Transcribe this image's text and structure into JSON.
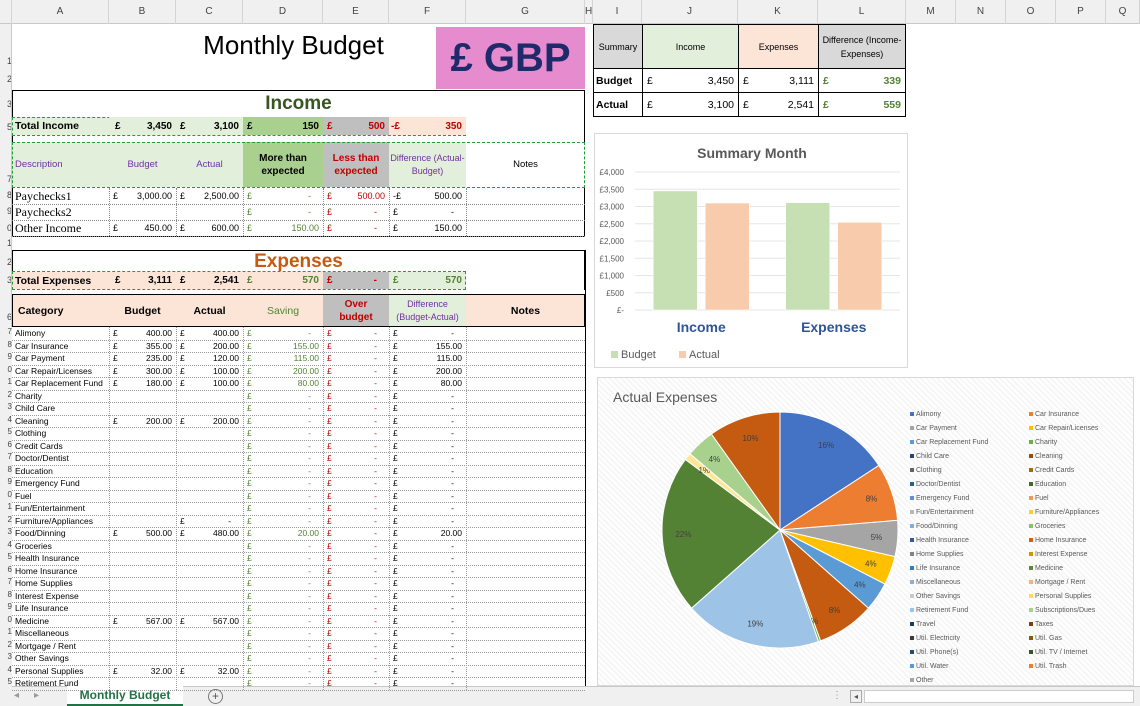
{
  "columns": [
    "A",
    "B",
    "C",
    "D",
    "E",
    "F",
    "G",
    "H",
    "I",
    "J",
    "K",
    "L",
    "M",
    "N",
    "O",
    "P",
    "Q"
  ],
  "rows": [
    "1",
    "2",
    "3",
    "5",
    "7",
    "8",
    "9",
    "0",
    "1",
    "2",
    "3",
    "6",
    "7",
    "8",
    "9",
    "20",
    "21",
    "22",
    "23",
    "24",
    "25",
    "26",
    "27",
    "28",
    "29",
    "30",
    "31",
    "32",
    "33",
    "34",
    "35",
    "36",
    "37",
    "38",
    "39",
    "40",
    "41",
    "42",
    "43",
    "44",
    "45"
  ],
  "title": "Monthly Budget",
  "currency_badge": "£  GBP",
  "income": {
    "heading": "Income",
    "total_label": "Total Income",
    "total_budget_sym": "£",
    "total_budget": "3,450",
    "total_actual_sym": "£",
    "total_actual": "3,100",
    "total_more_sym": "£",
    "total_more": "150",
    "total_less_sym": "£",
    "total_less": "500",
    "total_diff_sym": "-£",
    "total_diff": "350",
    "headers": {
      "description": "Description",
      "budget": "Budget",
      "actual": "Actual",
      "more": "More than expected",
      "less": "Less than expected",
      "difference": "Difference (Actual-Budget)",
      "notes": "Notes"
    },
    "rows": [
      {
        "desc": "Paychecks1",
        "b_sym": "£",
        "budget": "3,000.00",
        "a_sym": "£",
        "actual": "2,500.00",
        "m_sym": "£",
        "more": "-",
        "l_sym": "£",
        "less": "500.00",
        "d_sym": "-£",
        "diff": "500.00"
      },
      {
        "desc": "Paychecks2",
        "b_sym": "",
        "budget": "",
        "a_sym": "",
        "actual": "",
        "m_sym": "£",
        "more": "-",
        "l_sym": "£",
        "less": "-",
        "d_sym": "£",
        "diff": "-"
      },
      {
        "desc": "Other Income",
        "b_sym": "£",
        "budget": "450.00",
        "a_sym": "£",
        "actual": "600.00",
        "m_sym": "£",
        "more": "150.00",
        "l_sym": "£",
        "less": "-",
        "d_sym": "£",
        "diff": "150.00"
      }
    ]
  },
  "expenses": {
    "heading": "Expenses",
    "total_label": "Total Expenses",
    "total_budget_sym": "£",
    "total_budget": "3,111",
    "total_actual_sym": "£",
    "total_actual": "2,541",
    "total_saving_sym": "£",
    "total_saving": "570",
    "total_over_sym": "£",
    "total_over": "-",
    "total_diff_sym": "£",
    "total_diff": "570",
    "headers": {
      "category": "Category",
      "budget": "Budget",
      "actual": "Actual",
      "saving": "Saving",
      "over": "Over budget",
      "difference": "Difference (Budget-Actual)",
      "notes": "Notes"
    },
    "rows": [
      {
        "cat": "Alimony",
        "b_sym": "£",
        "budget": "400.00",
        "a_sym": "£",
        "actual": "400.00",
        "s_sym": "£",
        "saving": "-",
        "o_sym": "£",
        "over": "-",
        "d_sym": "£",
        "diff": "-"
      },
      {
        "cat": "Car Insurance",
        "b_sym": "£",
        "budget": "355.00",
        "a_sym": "£",
        "actual": "200.00",
        "s_sym": "£",
        "saving": "155.00",
        "o_sym": "£",
        "over": "-",
        "d_sym": "£",
        "diff": "155.00"
      },
      {
        "cat": "Car Payment",
        "b_sym": "£",
        "budget": "235.00",
        "a_sym": "£",
        "actual": "120.00",
        "s_sym": "£",
        "saving": "115.00",
        "o_sym": "£",
        "over": "-",
        "d_sym": "£",
        "diff": "115.00"
      },
      {
        "cat": "Car Repair/Licenses",
        "b_sym": "£",
        "budget": "300.00",
        "a_sym": "£",
        "actual": "100.00",
        "s_sym": "£",
        "saving": "200.00",
        "o_sym": "£",
        "over": "-",
        "d_sym": "£",
        "diff": "200.00"
      },
      {
        "cat": "Car Replacement Fund",
        "b_sym": "£",
        "budget": "180.00",
        "a_sym": "£",
        "actual": "100.00",
        "s_sym": "£",
        "saving": "80.00",
        "o_sym": "£",
        "over": "-",
        "d_sym": "£",
        "diff": "80.00"
      },
      {
        "cat": "Charity",
        "b_sym": "",
        "budget": "",
        "a_sym": "",
        "actual": "",
        "s_sym": "£",
        "saving": "-",
        "o_sym": "£",
        "over": "-",
        "d_sym": "£",
        "diff": "-"
      },
      {
        "cat": "Child Care",
        "b_sym": "",
        "budget": "",
        "a_sym": "",
        "actual": "",
        "s_sym": "£",
        "saving": "-",
        "o_sym": "£",
        "over": "-",
        "d_sym": "£",
        "diff": "-"
      },
      {
        "cat": "Cleaning",
        "b_sym": "£",
        "budget": "200.00",
        "a_sym": "£",
        "actual": "200.00",
        "s_sym": "£",
        "saving": "-",
        "o_sym": "£",
        "over": "-",
        "d_sym": "£",
        "diff": "-"
      },
      {
        "cat": "Clothing",
        "b_sym": "",
        "budget": "",
        "a_sym": "",
        "actual": "",
        "s_sym": "£",
        "saving": "-",
        "o_sym": "£",
        "over": "-",
        "d_sym": "£",
        "diff": "-"
      },
      {
        "cat": "Credit Cards",
        "b_sym": "",
        "budget": "",
        "a_sym": "",
        "actual": "",
        "s_sym": "£",
        "saving": "-",
        "o_sym": "£",
        "over": "-",
        "d_sym": "£",
        "diff": "-"
      },
      {
        "cat": "Doctor/Dentist",
        "b_sym": "",
        "budget": "",
        "a_sym": "",
        "actual": "",
        "s_sym": "£",
        "saving": "-",
        "o_sym": "£",
        "over": "-",
        "d_sym": "£",
        "diff": "-"
      },
      {
        "cat": "Education",
        "b_sym": "",
        "budget": "",
        "a_sym": "",
        "actual": "",
        "s_sym": "£",
        "saving": "-",
        "o_sym": "£",
        "over": "-",
        "d_sym": "£",
        "diff": "-"
      },
      {
        "cat": "Emergency Fund",
        "b_sym": "",
        "budget": "",
        "a_sym": "",
        "actual": "",
        "s_sym": "£",
        "saving": "-",
        "o_sym": "£",
        "over": "-",
        "d_sym": "£",
        "diff": "-"
      },
      {
        "cat": "Fuel",
        "b_sym": "",
        "budget": "",
        "a_sym": "",
        "actual": "",
        "s_sym": "£",
        "saving": "-",
        "o_sym": "£",
        "over": "-",
        "d_sym": "£",
        "diff": "-"
      },
      {
        "cat": "Fun/Entertainment",
        "b_sym": "",
        "budget": "",
        "a_sym": "",
        "actual": "",
        "s_sym": "£",
        "saving": "-",
        "o_sym": "£",
        "over": "-",
        "d_sym": "£",
        "diff": "-"
      },
      {
        "cat": "Furniture/Appliances",
        "b_sym": "",
        "budget": "",
        "a_sym": "£",
        "actual": "-",
        "s_sym": "£",
        "saving": "-",
        "o_sym": "£",
        "over": "-",
        "d_sym": "£",
        "diff": "-"
      },
      {
        "cat": "Food/Dinning",
        "b_sym": "£",
        "budget": "500.00",
        "a_sym": "£",
        "actual": "480.00",
        "s_sym": "£",
        "saving": "20.00",
        "o_sym": "£",
        "over": "-",
        "d_sym": "£",
        "diff": "20.00"
      },
      {
        "cat": "Groceries",
        "b_sym": "",
        "budget": "",
        "a_sym": "",
        "actual": "",
        "s_sym": "£",
        "saving": "-",
        "o_sym": "£",
        "over": "-",
        "d_sym": "£",
        "diff": "-"
      },
      {
        "cat": "Health Insurance",
        "b_sym": "",
        "budget": "",
        "a_sym": "",
        "actual": "",
        "s_sym": "£",
        "saving": "-",
        "o_sym": "£",
        "over": "-",
        "d_sym": "£",
        "diff": "-"
      },
      {
        "cat": "Home Insurance",
        "b_sym": "",
        "budget": "",
        "a_sym": "",
        "actual": "",
        "s_sym": "£",
        "saving": "-",
        "o_sym": "£",
        "over": "-",
        "d_sym": "£",
        "diff": "-"
      },
      {
        "cat": "Home Supplies",
        "b_sym": "",
        "budget": "",
        "a_sym": "",
        "actual": "",
        "s_sym": "£",
        "saving": "-",
        "o_sym": "£",
        "over": "-",
        "d_sym": "£",
        "diff": "-"
      },
      {
        "cat": "Interest Expense",
        "b_sym": "",
        "budget": "",
        "a_sym": "",
        "actual": "",
        "s_sym": "£",
        "saving": "-",
        "o_sym": "£",
        "over": "-",
        "d_sym": "£",
        "diff": "-"
      },
      {
        "cat": "Life Insurance",
        "b_sym": "",
        "budget": "",
        "a_sym": "",
        "actual": "",
        "s_sym": "£",
        "saving": "-",
        "o_sym": "£",
        "over": "-",
        "d_sym": "£",
        "diff": "-"
      },
      {
        "cat": "Medicine",
        "b_sym": "£",
        "budget": "567.00",
        "a_sym": "£",
        "actual": "567.00",
        "s_sym": "£",
        "saving": "-",
        "o_sym": "£",
        "over": "-",
        "d_sym": "£",
        "diff": "-"
      },
      {
        "cat": "Miscellaneous",
        "b_sym": "",
        "budget": "",
        "a_sym": "",
        "actual": "",
        "s_sym": "£",
        "saving": "-",
        "o_sym": "£",
        "over": "-",
        "d_sym": "£",
        "diff": "-"
      },
      {
        "cat": "Mortgage / Rent",
        "b_sym": "",
        "budget": "",
        "a_sym": "",
        "actual": "",
        "s_sym": "£",
        "saving": "-",
        "o_sym": "£",
        "over": "-",
        "d_sym": "£",
        "diff": "-"
      },
      {
        "cat": "Other Savings",
        "b_sym": "",
        "budget": "",
        "a_sym": "",
        "actual": "",
        "s_sym": "£",
        "saving": "-",
        "o_sym": "£",
        "over": "-",
        "d_sym": "£",
        "diff": "-"
      },
      {
        "cat": "Personal Supplies",
        "b_sym": "£",
        "budget": "32.00",
        "a_sym": "£",
        "actual": "32.00",
        "s_sym": "£",
        "saving": "-",
        "o_sym": "£",
        "over": "-",
        "d_sym": "£",
        "diff": "-"
      },
      {
        "cat": "Retirement Fund",
        "b_sym": "",
        "budget": "",
        "a_sym": "",
        "actual": "",
        "s_sym": "£",
        "saving": "-",
        "o_sym": "£",
        "over": "-",
        "d_sym": "£",
        "diff": "-"
      }
    ]
  },
  "summary": {
    "headers": {
      "summary": "Summary",
      "income": "Income",
      "expenses": "Expenses",
      "difference": "Difference (Income-Expenses)"
    },
    "rows": [
      {
        "label": "Budget",
        "i_sym": "£",
        "income": "3,450",
        "e_sym": "£",
        "expenses": "3,111",
        "d_sym": "£",
        "diff": "339"
      },
      {
        "label": "Actual",
        "i_sym": "£",
        "income": "3,100",
        "e_sym": "£",
        "expenses": "2,541",
        "d_sym": "£",
        "diff": "559"
      }
    ]
  },
  "chart_data": [
    {
      "type": "bar",
      "title": "Summary Month",
      "categories": [
        "Income",
        "Expenses"
      ],
      "series": [
        {
          "name": "Budget",
          "values": [
            3450,
            3111
          ],
          "color": "#c6e0b4"
        },
        {
          "name": "Actual",
          "values": [
            3100,
            2541
          ],
          "color": "#f8cbad"
        }
      ],
      "ylim": [
        0,
        4000
      ],
      "yticks": [
        "£4,000",
        "£3,500",
        "£3,000",
        "£2,500",
        "£2,000",
        "£1,500",
        "£1,000",
        "£500",
        "£-"
      ],
      "legend": "bottom-left",
      "grid": true
    },
    {
      "type": "pie",
      "title": "Actual Expenses",
      "slices": [
        {
          "name": "Alimony",
          "value": 16,
          "label": "16%",
          "color": "#4472c4"
        },
        {
          "name": "Car Insurance",
          "value": 8,
          "label": "8%",
          "color": "#ed7d31"
        },
        {
          "name": "Car Payment",
          "value": 5,
          "label": "5%",
          "color": "#a5a5a5"
        },
        {
          "name": "Car Repair/Licenses",
          "value": 4,
          "label": "4%",
          "color": "#ffc000"
        },
        {
          "name": "Car Replacement Fund",
          "value": 4,
          "label": "4%",
          "color": "#5b9bd5"
        },
        {
          "name": "Cleaning",
          "value": 8,
          "label": "8%",
          "color": "#c55a11"
        },
        {
          "name": "Furniture/Appliances",
          "value": 0,
          "label": "0%",
          "color": "#70ad47"
        },
        {
          "name": "Food/Dinning",
          "value": 19,
          "label": "19%",
          "color": "#9dc3e6"
        },
        {
          "name": "Medicine",
          "value": 22,
          "label": "22%",
          "color": "#548235"
        },
        {
          "name": "Personal Supplies",
          "value": 1,
          "label": "1%",
          "color": "#ffe699"
        },
        {
          "name": "Other",
          "value": 4,
          "label": "4%",
          "color": "#a9d18e"
        },
        {
          "name": "Retirement Fund",
          "value": 10,
          "label": "10%",
          "color": "#c55a11"
        }
      ],
      "legend": [
        [
          "Alimony",
          "#4472c4"
        ],
        [
          "Car Insurance",
          "#ed7d31"
        ],
        [
          "Car Payment",
          "#a5a5a5"
        ],
        [
          "Car Repair/Licenses",
          "#ffc000"
        ],
        [
          "Car Replacement Fund",
          "#5b9bd5"
        ],
        [
          "Charity",
          "#70ad47"
        ],
        [
          "Child Care",
          "#264478"
        ],
        [
          "Cleaning",
          "#9e480e"
        ],
        [
          "Clothing",
          "#636363"
        ],
        [
          "Credit Cards",
          "#997300"
        ],
        [
          "Doctor/Dentist",
          "#255e91"
        ],
        [
          "Education",
          "#43682b"
        ],
        [
          "Emergency Fund",
          "#698ed0"
        ],
        [
          "Fuel",
          "#f1975a"
        ],
        [
          "Fun/Entertainment",
          "#b7b7b7"
        ],
        [
          "Furniture/Appliances",
          "#ffcd33"
        ],
        [
          "Food/Dinning",
          "#7cafdd"
        ],
        [
          "Groceries",
          "#8cc168"
        ],
        [
          "Health Insurance",
          "#335aa1"
        ],
        [
          "Home Insurance",
          "#d26012"
        ],
        [
          "Home Supplies",
          "#848484"
        ],
        [
          "Interest Expense",
          "#cc9a00"
        ],
        [
          "Life Insurance",
          "#327dc2"
        ],
        [
          "Medicine",
          "#5a8a39"
        ],
        [
          "Miscellaneous",
          "#8faadc"
        ],
        [
          "Mortgage / Rent",
          "#f4b183"
        ],
        [
          "Other Savings",
          "#c9c9c9"
        ],
        [
          "Personal Supplies",
          "#ffd966"
        ],
        [
          "Retirement Fund",
          "#9dc3e6"
        ],
        [
          "Subscriptions/Dues",
          "#a9d18e"
        ],
        [
          "Travel",
          "#1f3864"
        ],
        [
          "Taxes",
          "#843c0c"
        ],
        [
          "Util. Electricity",
          "#3a3a3a"
        ],
        [
          "Util. Gas",
          "#7f6000"
        ],
        [
          "Util. Phone(s)",
          "#1f4e79"
        ],
        [
          "Util. TV / Internet",
          "#375623"
        ],
        [
          "Util. Water",
          "#5b9bd5"
        ],
        [
          "Util. Trash",
          "#ed7d31"
        ],
        [
          "Other",
          "#a5a5a5"
        ]
      ]
    }
  ],
  "sheet_tabs": [
    "Monthly Budget"
  ]
}
